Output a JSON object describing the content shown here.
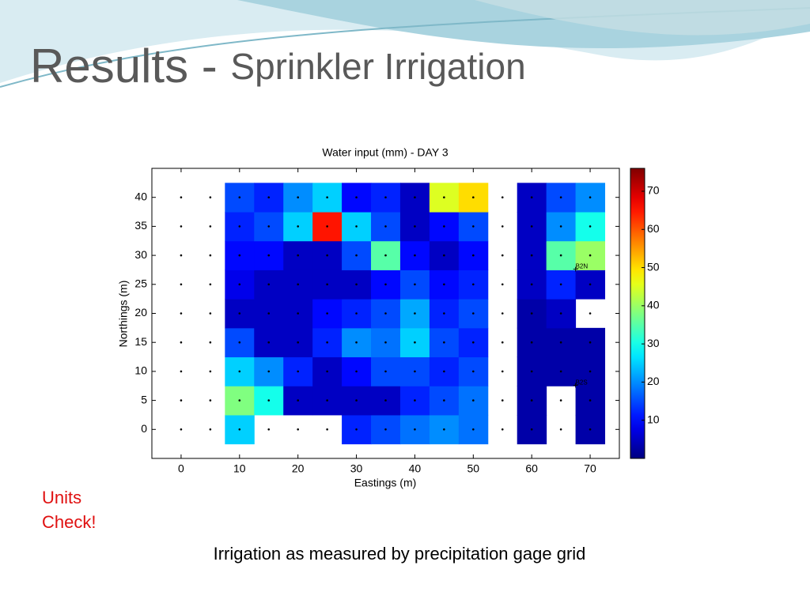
{
  "slide": {
    "title": "Results - ",
    "title_sub": "Sprinkler Irrigation",
    "note": "Units Check!",
    "caption": "Irrigation as measured by precipitation gage grid"
  },
  "chart_data": {
    "type": "heatmap",
    "title": "Water input (mm) - DAY 3",
    "x_label": "Eastings (m)",
    "y_label": "Northings (m)",
    "x": [
      10,
      15,
      20,
      25,
      30,
      35,
      40,
      45,
      50,
      60,
      65,
      70
    ],
    "y": [
      0,
      5,
      10,
      15,
      20,
      25,
      30,
      35,
      40
    ],
    "z": [
      [
        25,
        null,
        null,
        null,
        12,
        15,
        18,
        20,
        18,
        3,
        null,
        3
      ],
      [
        38,
        30,
        5,
        5,
        5,
        5,
        12,
        15,
        18,
        3,
        null,
        3
      ],
      [
        25,
        20,
        12,
        5,
        10,
        15,
        15,
        12,
        15,
        3,
        3,
        3
      ],
      [
        15,
        5,
        5,
        12,
        20,
        18,
        25,
        15,
        12,
        3,
        3,
        3
      ],
      [
        5,
        5,
        5,
        10,
        12,
        15,
        22,
        12,
        15,
        3,
        5,
        null
      ],
      [
        8,
        5,
        5,
        5,
        5,
        10,
        15,
        10,
        12,
        5,
        12,
        5
      ],
      [
        10,
        10,
        5,
        5,
        15,
        35,
        10,
        5,
        10,
        5,
        35,
        40
      ],
      [
        12,
        15,
        25,
        65,
        25,
        15,
        5,
        10,
        15,
        5,
        20,
        30
      ],
      [
        15,
        12,
        20,
        25,
        10,
        12,
        5,
        45,
        50,
        5,
        15,
        20
      ]
    ],
    "gage_x": [
      0,
      5,
      10,
      15,
      20,
      25,
      30,
      35,
      40,
      45,
      50,
      55,
      60,
      65,
      70
    ],
    "gage_y": [
      0,
      5,
      10,
      15,
      20,
      25,
      30,
      35,
      40
    ],
    "annotations": [
      {
        "text": "B2N",
        "x": 67.5,
        "y": 27.5
      },
      {
        "text": "B2S",
        "x": 67.5,
        "y": 7.5
      }
    ],
    "xlim": [
      -5,
      75
    ],
    "ylim": [
      -5,
      45
    ],
    "xticks": [
      0,
      10,
      20,
      30,
      40,
      50,
      60,
      70
    ],
    "yticks": [
      0,
      5,
      10,
      15,
      20,
      25,
      30,
      35,
      40
    ],
    "clim": [
      0,
      76
    ],
    "cticks": [
      10,
      20,
      30,
      40,
      50,
      60,
      70
    ],
    "colormap": "jet"
  }
}
